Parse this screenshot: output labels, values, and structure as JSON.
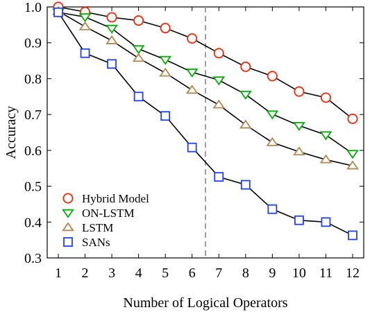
{
  "chart_data": {
    "type": "line",
    "title": "",
    "xlabel": "Number of Logical Operators",
    "ylabel": "Accuracy",
    "x": [
      1,
      2,
      3,
      4,
      5,
      6,
      7,
      8,
      9,
      10,
      11,
      12
    ],
    "xlim": [
      1,
      12
    ],
    "ylim": [
      0.3,
      1.0
    ],
    "xticks": [
      "1",
      "2",
      "3",
      "4",
      "5",
      "6",
      "7",
      "8",
      "9",
      "10",
      "11",
      "12"
    ],
    "yticks": [
      "0.3",
      "0.4",
      "0.5",
      "0.6",
      "0.7",
      "0.8",
      "0.9",
      "1.0"
    ],
    "grid": false,
    "legend_position": "bottom-left",
    "divider_x": 6.5,
    "series": [
      {
        "name": "Hybrid Model",
        "marker": "circle",
        "color": "#ff2200",
        "values": [
          1.0,
          0.986,
          0.971,
          0.962,
          0.941,
          0.912,
          0.871,
          0.833,
          0.807,
          0.764,
          0.747,
          0.688
        ]
      },
      {
        "name": "ON-LSTM",
        "marker": "triangle-down",
        "color": "#00b000",
        "values": [
          0.985,
          0.972,
          0.94,
          0.883,
          0.853,
          0.818,
          0.796,
          0.756,
          0.701,
          0.669,
          0.643,
          0.591
        ]
      },
      {
        "name": "LSTM",
        "marker": "triangle-up",
        "color": "#b08850",
        "values": [
          0.988,
          0.945,
          0.906,
          0.857,
          0.816,
          0.768,
          0.727,
          0.671,
          0.622,
          0.596,
          0.574,
          0.557
        ]
      },
      {
        "name": "SANs",
        "marker": "square",
        "color": "#1f3fff",
        "values": [
          0.985,
          0.871,
          0.841,
          0.75,
          0.696,
          0.608,
          0.526,
          0.504,
          0.436,
          0.405,
          0.4,
          0.363
        ]
      }
    ]
  }
}
